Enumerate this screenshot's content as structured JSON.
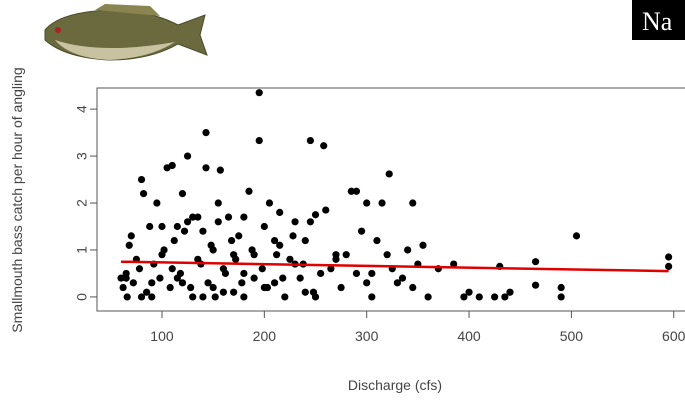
{
  "chart_data": {
    "type": "scatter",
    "overlay_text": "Na",
    "x_label": "Discharge (cfs)",
    "y_label": "Smallmouth bass catch per hour of angling",
    "xlim": [
      36.5,
      611
    ],
    "ylim": [
      -0.3,
      4.45
    ],
    "xticks": [
      100,
      200,
      300,
      400,
      500,
      600
    ],
    "yticks": [
      0,
      1,
      2,
      3,
      4
    ],
    "color": "#000000",
    "x": [
      195,
      143,
      245,
      195,
      258,
      125,
      110,
      105,
      143,
      157,
      322,
      80,
      285,
      290,
      185,
      120,
      82,
      300,
      315,
      345,
      205,
      155,
      95,
      250,
      260,
      505,
      595,
      595,
      465,
      430,
      385,
      490,
      490,
      465,
      425,
      400,
      410,
      440,
      435,
      395,
      370,
      360,
      350,
      340,
      330,
      310,
      305,
      295,
      280,
      275,
      265,
      240,
      235,
      230,
      225,
      215,
      210,
      200,
      190,
      180,
      175,
      170,
      165,
      160,
      150,
      145,
      140,
      135,
      130,
      125,
      118,
      112,
      108,
      102,
      98,
      92,
      88,
      85,
      78,
      72,
      68,
      65,
      62,
      60,
      70,
      90,
      100,
      115,
      122,
      128,
      138,
      148,
      152,
      162,
      168,
      172,
      178,
      188,
      198,
      203,
      212,
      218,
      228,
      238,
      248,
      255,
      270,
      300,
      320,
      335,
      355,
      345,
      325,
      305,
      290,
      270,
      250,
      230,
      210,
      190,
      170,
      150,
      130,
      110,
      90,
      75,
      66,
      120,
      140,
      160,
      180,
      200,
      220,
      240,
      100,
      80,
      65,
      215,
      245,
      180,
      155,
      135,
      115
    ],
    "values": [
      4.35,
      3.5,
      3.33,
      3.33,
      3.22,
      3.0,
      2.8,
      2.75,
      2.75,
      2.7,
      2.62,
      2.5,
      2.25,
      2.25,
      2.25,
      2.2,
      2.2,
      2.0,
      2.0,
      2.0,
      2.0,
      2.0,
      2.0,
      1.75,
      1.85,
      1.3,
      0.85,
      0.65,
      0.75,
      0.65,
      0.7,
      0.2,
      0.0,
      0.25,
      0.0,
      0.1,
      0.0,
      0.1,
      0.0,
      0.0,
      0.6,
      0.0,
      0.7,
      1.0,
      0.3,
      1.2,
      0.5,
      1.4,
      0.9,
      0.2,
      0.6,
      1.2,
      0.4,
      1.6,
      0.8,
      1.1,
      0.3,
      1.5,
      0.9,
      0.5,
      1.3,
      0.1,
      1.7,
      0.6,
      1.0,
      0.3,
      1.4,
      0.8,
      0.0,
      1.6,
      0.5,
      1.2,
      0.2,
      1.0,
      0.4,
      0.7,
      1.5,
      0.1,
      0.6,
      0.3,
      1.1,
      0.5,
      0.2,
      0.4,
      1.3,
      0.0,
      0.9,
      0.4,
      1.4,
      0.2,
      0.7,
      1.1,
      0.0,
      0.5,
      1.2,
      0.8,
      0.3,
      1.0,
      0.6,
      0.2,
      0.9,
      0.4,
      1.3,
      0.7,
      0.1,
      0.5,
      0.8,
      0.3,
      0.9,
      0.4,
      1.1,
      0.2,
      0.6,
      0.0,
      0.5,
      0.9,
      0.0,
      0.7,
      1.2,
      0.4,
      0.9,
      0.2,
      1.7,
      0.6,
      0.3,
      0.8,
      0.0,
      0.3,
      0.0,
      0.1,
      0.0,
      0.2,
      0.0,
      0.1,
      1.5,
      0.0,
      0.4,
      1.8,
      1.6,
      1.7,
      1.6,
      1.7,
      1.5
    ],
    "trend": {
      "color": "#e00000",
      "x": [
        60,
        595
      ],
      "values": [
        0.75,
        0.55
      ]
    }
  }
}
